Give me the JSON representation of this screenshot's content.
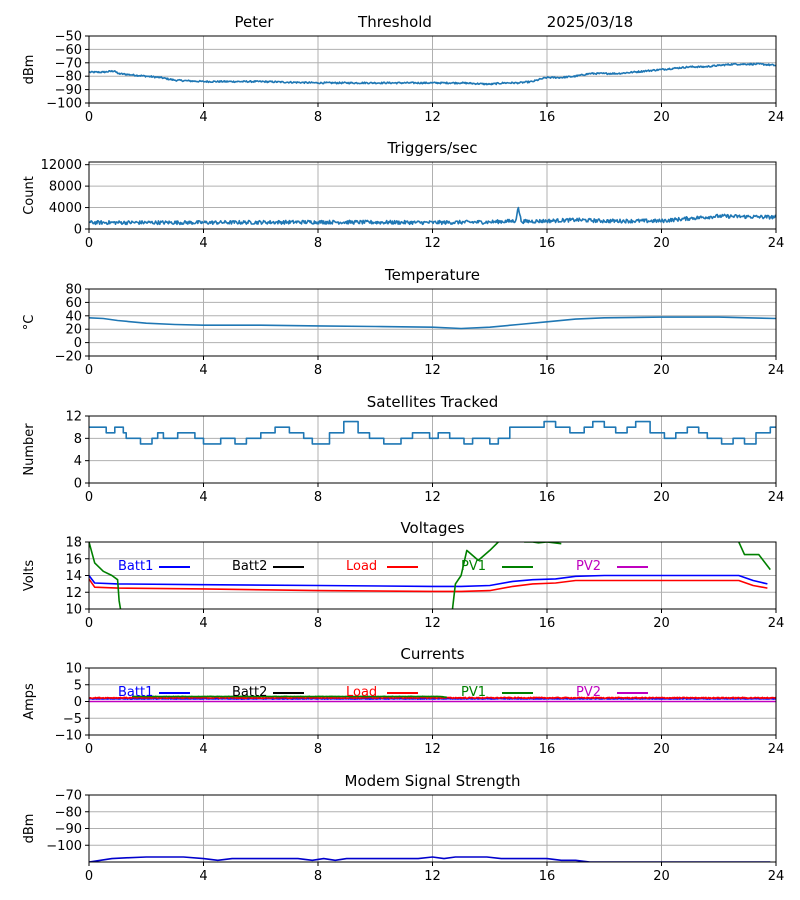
{
  "header": {
    "name": "Peter",
    "label": "Threshold",
    "date": "2025/03/18"
  },
  "chart_data": [
    {
      "id": "threshold",
      "type": "line",
      "title": "",
      "ylabel": "dBm",
      "xlim": [
        0,
        24
      ],
      "xticks": [
        0,
        4,
        8,
        12,
        16,
        20,
        24
      ],
      "ylim": [
        -100,
        -50
      ],
      "yticks": [
        -100,
        -90,
        -80,
        -70,
        -60,
        -50
      ],
      "grid": true,
      "series": [
        {
          "color": "#1f77b4",
          "noise": 0.6,
          "x": [
            0,
            0.5,
            0.9,
            1.0,
            1.5,
            2,
            2.5,
            3,
            3.5,
            4,
            6,
            8,
            10,
            12,
            13,
            14,
            14.5,
            15,
            15.5,
            15.8,
            16,
            16.5,
            17,
            17.5,
            18,
            18.5,
            19,
            19.5,
            20,
            20.5,
            21,
            21.5,
            22,
            22.5,
            23,
            23.5,
            24
          ],
          "y": [
            -77,
            -77,
            -76,
            -78,
            -79,
            -80,
            -81,
            -83,
            -83.5,
            -84,
            -84,
            -85,
            -85,
            -85,
            -85,
            -86,
            -85,
            -85,
            -84,
            -82,
            -81,
            -81,
            -80,
            -78,
            -78,
            -78,
            -77,
            -76,
            -75,
            -74,
            -73,
            -73,
            -72,
            -71,
            -71,
            -71,
            -72
          ]
        }
      ],
      "legend": null
    },
    {
      "id": "triggers",
      "type": "line",
      "title": "Triggers/sec",
      "ylabel": "Count",
      "xlim": [
        0,
        24
      ],
      "xticks": [
        0,
        4,
        8,
        12,
        16,
        20,
        24
      ],
      "ylim": [
        0,
        12500
      ],
      "yticks": [
        0,
        4000,
        8000,
        12000
      ],
      "grid": true,
      "series": [
        {
          "color": "#1f77b4",
          "noise": 350,
          "x": [
            0,
            4,
            8,
            12,
            14,
            14.9,
            15.0,
            15.1,
            16,
            17,
            18,
            20,
            21,
            22,
            23,
            24
          ],
          "y": [
            1200,
            1200,
            1300,
            1200,
            1300,
            1500,
            4000,
            1400,
            1500,
            1700,
            1500,
            1500,
            2000,
            2400,
            2300,
            2200
          ]
        }
      ],
      "legend": null
    },
    {
      "id": "temperature",
      "type": "line",
      "title": "Temperature",
      "ylabel": "°C",
      "xlim": [
        0,
        24
      ],
      "xticks": [
        0,
        4,
        8,
        12,
        16,
        20,
        24
      ],
      "ylim": [
        -20,
        80
      ],
      "yticks": [
        -20,
        0,
        20,
        40,
        60,
        80
      ],
      "grid": true,
      "series": [
        {
          "color": "#1f77b4",
          "noise": 0,
          "x": [
            0,
            0.5,
            1,
            2,
            3,
            4,
            5,
            6,
            8,
            10,
            12,
            13,
            14,
            15,
            16,
            17,
            18,
            20,
            21,
            22,
            23,
            24
          ],
          "y": [
            37,
            36,
            33,
            29,
            27,
            26,
            26,
            26,
            25,
            24,
            23,
            21,
            23,
            27,
            31,
            35,
            37,
            38,
            38,
            38,
            37,
            36
          ]
        }
      ],
      "legend": null
    },
    {
      "id": "satellites",
      "type": "line",
      "title": "Satellites Tracked",
      "ylabel": "Number",
      "xlim": [
        0,
        24
      ],
      "xticks": [
        0,
        4,
        8,
        12,
        16,
        20,
        24
      ],
      "ylim": [
        0,
        12
      ],
      "yticks": [
        0,
        4,
        8,
        12
      ],
      "grid": true,
      "series": [
        {
          "color": "#1f77b4",
          "noise": 0,
          "step": true,
          "x": [
            0,
            0.6,
            0.9,
            1.2,
            1.3,
            1.8,
            2.2,
            2.4,
            2.6,
            3.1,
            3.7,
            4.0,
            4.6,
            5.1,
            5.5,
            6.0,
            6.5,
            7.0,
            7.5,
            7.8,
            8.4,
            8.9,
            9.4,
            9.8,
            10.3,
            10.9,
            11.3,
            11.9,
            12.2,
            12.6,
            13.1,
            13.4,
            14.0,
            14.3,
            14.7,
            15.2,
            15.6,
            15.9,
            16.3,
            16.8,
            17.3,
            17.6,
            18.0,
            18.4,
            18.8,
            19.1,
            19.6,
            20.1,
            20.5,
            20.9,
            21.3,
            21.6,
            22.1,
            22.5,
            22.9,
            23.3,
            23.8,
            24.0
          ],
          "y": [
            10,
            9,
            10,
            9,
            8,
            7,
            8,
            9,
            8,
            9,
            8,
            7,
            8,
            7,
            8,
            9,
            10,
            9,
            8,
            7,
            9,
            11,
            9,
            8,
            7,
            8,
            9,
            8,
            9,
            8,
            7,
            8,
            7,
            8,
            10,
            10,
            10,
            11,
            10,
            9,
            10,
            11,
            10,
            9,
            10,
            11,
            9,
            8,
            9,
            10,
            9,
            8,
            7,
            8,
            7,
            9,
            10,
            10
          ]
        }
      ],
      "legend": null
    },
    {
      "id": "voltages",
      "type": "line",
      "title": "Voltages",
      "ylabel": "Volts",
      "xlim": [
        0,
        24
      ],
      "xticks": [
        0,
        4,
        8,
        12,
        16,
        20,
        24
      ],
      "ylim": [
        10,
        18
      ],
      "yticks": [
        10,
        12,
        14,
        16,
        18
      ],
      "grid": true,
      "series": [
        {
          "name": "Batt1",
          "color": "#0000ff",
          "noise": 0,
          "x": [
            0,
            0.2,
            1,
            4,
            8,
            12,
            13,
            14,
            14.8,
            15.5,
            16.3,
            17,
            18,
            20,
            22,
            22.7,
            23.2,
            23.7
          ],
          "y": [
            14.0,
            13.1,
            13.0,
            12.9,
            12.8,
            12.7,
            12.7,
            12.8,
            13.3,
            13.5,
            13.6,
            13.9,
            14.0,
            14.0,
            14.0,
            14.0,
            13.4,
            13.0
          ]
        },
        {
          "name": "Batt2",
          "color": "#000000",
          "noise": 0,
          "x": [],
          "y": []
        },
        {
          "name": "Load",
          "color": "#ff0000",
          "noise": 0,
          "x": [
            0,
            0.2,
            1,
            4,
            8,
            12,
            13,
            14,
            14.8,
            15.5,
            16.3,
            17,
            18,
            20,
            22,
            22.7,
            23.2,
            23.7
          ],
          "y": [
            13.6,
            12.6,
            12.5,
            12.4,
            12.2,
            12.1,
            12.1,
            12.2,
            12.7,
            13.0,
            13.1,
            13.4,
            13.4,
            13.4,
            13.4,
            13.4,
            12.8,
            12.5
          ]
        },
        {
          "name": "PV1",
          "color": "#008000",
          "noise": 0,
          "gapAbove": 18.2,
          "gapBelow": 9.8,
          "x": [
            0,
            0.2,
            0.5,
            0.8,
            1.0,
            1.05,
            1.1,
            null,
            12.7,
            12.8,
            13.0,
            13.2,
            13.6,
            14.0,
            14.3,
            null,
            15.2,
            15.5,
            15.7,
            16.0,
            16.5,
            null,
            22.7,
            22.9,
            23.4,
            23.8
          ],
          "y": [
            18,
            15.5,
            14.5,
            14,
            13.5,
            11,
            10,
            null,
            10,
            13,
            14,
            17,
            15.8,
            17,
            18,
            null,
            18,
            18,
            17.9,
            18,
            17.8,
            null,
            18,
            16.5,
            16.5,
            14.7
          ]
        },
        {
          "name": "PV2",
          "color": "#bf00bf",
          "noise": 0,
          "x": [],
          "y": []
        }
      ],
      "legend": {
        "location": "top",
        "entries": [
          "Batt1",
          "Batt2",
          "Load",
          "PV1",
          "PV2"
        ]
      }
    },
    {
      "id": "currents",
      "type": "line",
      "title": "Currents",
      "ylabel": "Amps",
      "xlim": [
        0,
        24
      ],
      "xticks": [
        0,
        4,
        8,
        12,
        16,
        20,
        24
      ],
      "ylim": [
        -10,
        10
      ],
      "yticks": [
        -10,
        -5,
        0,
        5,
        10
      ],
      "grid": true,
      "series": [
        {
          "name": "Batt1",
          "color": "#0000ff",
          "noise": 0.08,
          "x": [
            0,
            24
          ],
          "y": [
            0.8,
            0.8
          ]
        },
        {
          "name": "Batt2",
          "color": "#000000",
          "noise": 0,
          "x": [],
          "y": []
        },
        {
          "name": "Load",
          "color": "#ff0000",
          "noise": 0.15,
          "x": [
            0,
            24
          ],
          "y": [
            1.1,
            1.1
          ]
        },
        {
          "name": "PV1",
          "color": "#008000",
          "noise": 0.05,
          "x": [
            1.5,
            12.3,
            12.5
          ],
          "y": [
            1.5,
            1.5,
            1.2
          ]
        },
        {
          "name": "PV2",
          "color": "#bf00bf",
          "noise": 0,
          "x": [
            0,
            24
          ],
          "y": [
            0,
            0
          ]
        }
      ],
      "legend": {
        "location": "top",
        "entries": [
          "Batt1",
          "Batt2",
          "Load",
          "PV1",
          "PV2"
        ]
      }
    },
    {
      "id": "modem",
      "type": "line",
      "title": "Modem Signal Strength",
      "ylabel": "dBm",
      "xlim": [
        0,
        24
      ],
      "xticks": [
        0,
        4,
        8,
        12,
        16,
        20,
        24
      ],
      "ylim": [
        -110,
        -70
      ],
      "yticks": [
        -100,
        -90,
        -80,
        -70
      ],
      "grid": true,
      "series": [
        {
          "color": "#0000cc",
          "noise": 0,
          "x": [
            0,
            0.4,
            0.8,
            1.3,
            2,
            3.3,
            4,
            4.5,
            5,
            7.3,
            7.8,
            8.2,
            8.6,
            9,
            9.5,
            11.5,
            12,
            12.4,
            12.8,
            13.9,
            14.4,
            16,
            16.5,
            17,
            17.5,
            20.5,
            21.2,
            23.8
          ],
          "y": [
            -110,
            -109,
            -108,
            -107.5,
            -107,
            -107,
            -108,
            -109,
            -108,
            -108,
            -109,
            -108,
            -109,
            -108,
            -108,
            -108,
            -107,
            -108,
            -107,
            -107,
            -108,
            -108,
            -109,
            -109,
            -110,
            -110,
            -110,
            -110
          ]
        }
      ],
      "legend": null
    }
  ]
}
